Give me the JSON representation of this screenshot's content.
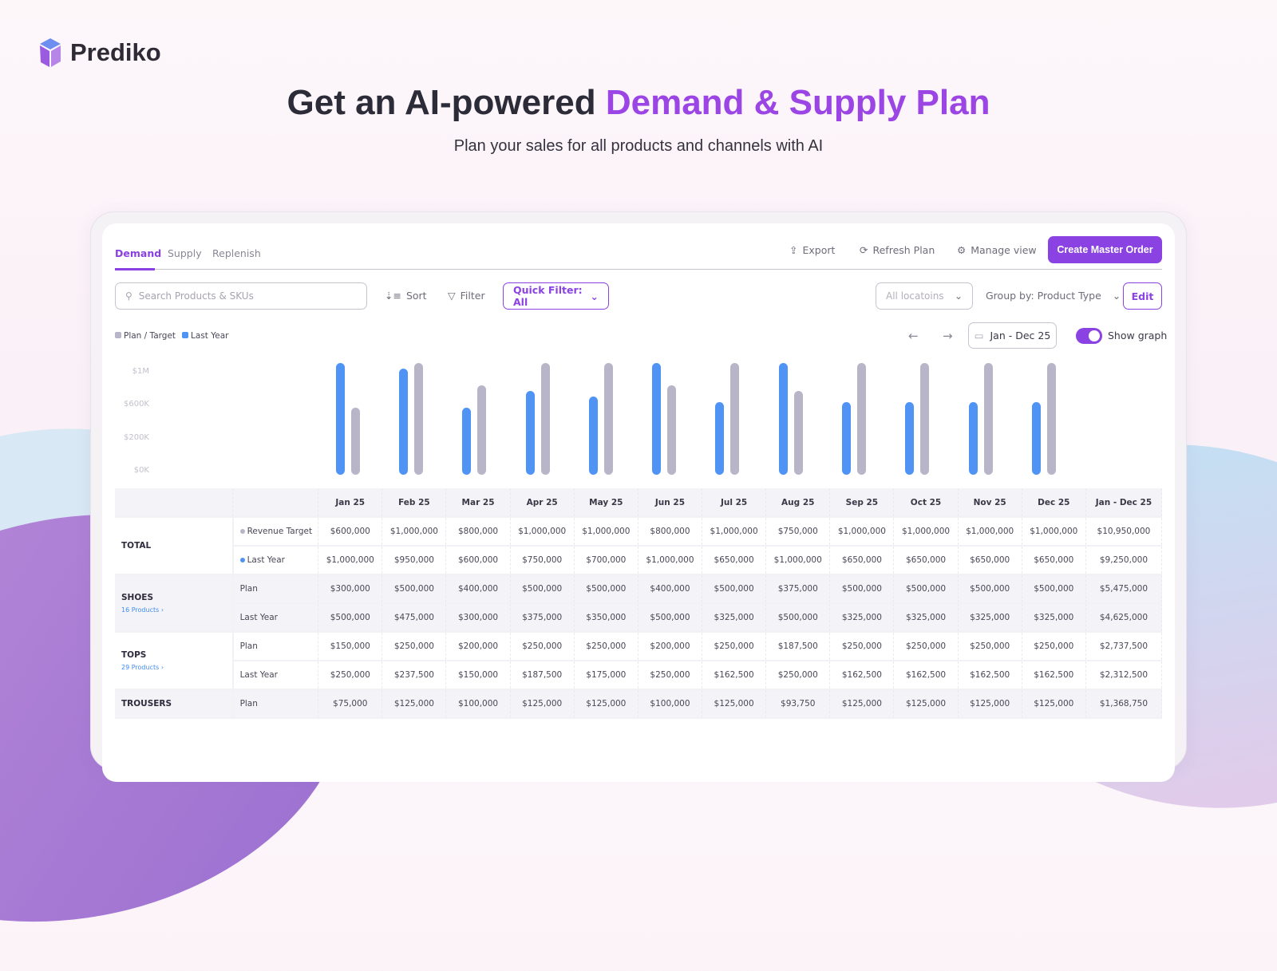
{
  "brand": {
    "name": "Prediko"
  },
  "hero": {
    "headline_prefix": "Get an AI-powered ",
    "headline_accent": "Demand & Supply Plan",
    "subtitle": "Plan your sales for all products and channels with AI"
  },
  "tabs": [
    {
      "label": "Demand",
      "active": true
    },
    {
      "label": "Supply"
    },
    {
      "label": "Replenish"
    }
  ],
  "actions": {
    "export": "Export",
    "refresh": "Refresh Plan",
    "manage": "Manage view",
    "create": "Create Master Order"
  },
  "toolbar": {
    "search_placeholder": "Search Products & SKUs",
    "sort": "Sort",
    "filter": "Filter",
    "quick_filter": "Quick Filter: All",
    "locations": "All locatoins",
    "group_by": "Group by: Product Type",
    "edit": "Edit",
    "date_range": "Jan - Dec 25",
    "show_graph": "Show graph",
    "show_graph_on": true
  },
  "colors": {
    "accent": "#8b42e2",
    "plan": "#b8b5c8",
    "last_year": "#4f94f5"
  },
  "chart_data": {
    "type": "bar",
    "legend": [
      {
        "name": "Plan / Target",
        "color": "#b8b5c8"
      },
      {
        "name": "Last Year",
        "color": "#4f94f5"
      }
    ],
    "legend_position": "top-left",
    "y_ticks": [
      "$1M",
      "$600K",
      "$200K",
      "$0K"
    ],
    "ylim": [
      0,
      1000000
    ],
    "categories": [
      "Jan 25",
      "Feb 25",
      "Mar 25",
      "Apr 25",
      "May 25",
      "Jun 25",
      "Jul 25",
      "Aug 25",
      "Sep 25",
      "Oct 25",
      "Nov 25",
      "Dec 25"
    ],
    "series": [
      {
        "name": "Last Year",
        "values": [
          1000000,
          950000,
          600000,
          750000,
          700000,
          1000000,
          650000,
          1000000,
          650000,
          650000,
          650000,
          650000
        ]
      },
      {
        "name": "Plan / Target",
        "values": [
          600000,
          1000000,
          800000,
          1000000,
          1000000,
          800000,
          1000000,
          750000,
          1000000,
          1000000,
          1000000,
          1000000
        ]
      }
    ]
  },
  "table": {
    "columns": [
      "Jan 25",
      "Feb 25",
      "Mar 25",
      "Apr 25",
      "May 25",
      "Jun 25",
      "Jul 25",
      "Aug 25",
      "Sep 25",
      "Oct 25",
      "Nov 25",
      "Dec 25",
      "Jan - Dec 25"
    ],
    "groups": [
      {
        "name": "TOTAL",
        "rows": [
          {
            "label": "Revenue Target",
            "dot": "#b8b5c8",
            "values": [
              "$600,000",
              "$1,000,000",
              "$800,000",
              "$1,000,000",
              "$1,000,000",
              "$800,000",
              "$1,000,000",
              "$750,000",
              "$1,000,000",
              "$1,000,000",
              "$1,000,000",
              "$1,000,000",
              "$10,950,000"
            ]
          },
          {
            "label": "Last Year",
            "dot": "#4f94f5",
            "values": [
              "$1,000,000",
              "$950,000",
              "$600,000",
              "$750,000",
              "$700,000",
              "$1,000,000",
              "$650,000",
              "$1,000,000",
              "$650,000",
              "$650,000",
              "$650,000",
              "$650,000",
              "$9,250,000"
            ]
          }
        ]
      },
      {
        "name": "SHOES",
        "products": "16 Products",
        "rows": [
          {
            "label": "Plan",
            "values": [
              "$300,000",
              "$500,000",
              "$400,000",
              "$500,000",
              "$500,000",
              "$400,000",
              "$500,000",
              "$375,000",
              "$500,000",
              "$500,000",
              "$500,000",
              "$500,000",
              "$5,475,000"
            ]
          },
          {
            "label": "Last Year",
            "values": [
              "$500,000",
              "$475,000",
              "$300,000",
              "$375,000",
              "$350,000",
              "$500,000",
              "$325,000",
              "$500,000",
              "$325,000",
              "$325,000",
              "$325,000",
              "$325,000",
              "$4,625,000"
            ]
          }
        ]
      },
      {
        "name": "TOPS",
        "products": "29 Products",
        "rows": [
          {
            "label": "Plan",
            "values": [
              "$150,000",
              "$250,000",
              "$200,000",
              "$250,000",
              "$250,000",
              "$200,000",
              "$250,000",
              "$187,500",
              "$250,000",
              "$250,000",
              "$250,000",
              "$250,000",
              "$2,737,500"
            ]
          },
          {
            "label": "Last Year",
            "values": [
              "$250,000",
              "$237,500",
              "$150,000",
              "$187,500",
              "$175,000",
              "$250,000",
              "$162,500",
              "$250,000",
              "$162,500",
              "$162,500",
              "$162,500",
              "$162,500",
              "$2,312,500"
            ]
          }
        ]
      },
      {
        "name": "TROUSERS",
        "rows": [
          {
            "label": "Plan",
            "values": [
              "$75,000",
              "$125,000",
              "$100,000",
              "$125,000",
              "$125,000",
              "$100,000",
              "$125,000",
              "$93,750",
              "$125,000",
              "$125,000",
              "$125,000",
              "$125,000",
              "$1,368,750"
            ]
          }
        ]
      }
    ]
  }
}
